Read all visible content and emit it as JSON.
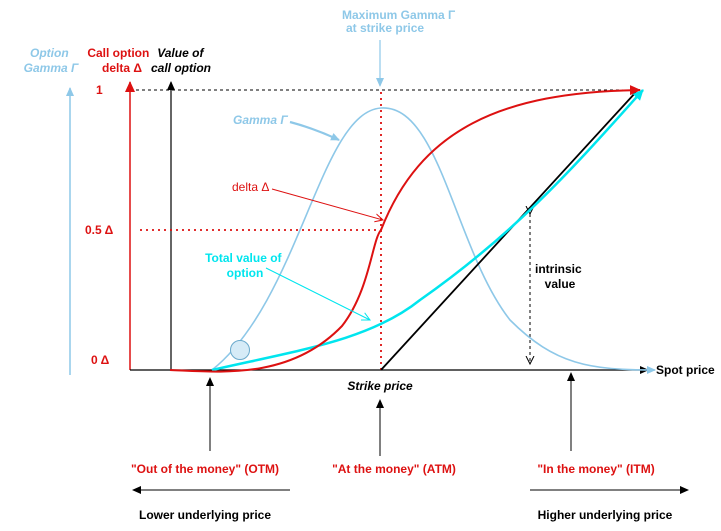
{
  "colors": {
    "gamma": "#8ec8e8",
    "delta": "#dd1111",
    "option_value": "#00e5ee",
    "black": "#000000"
  },
  "axes": {
    "gamma_axis": [
      "Option",
      "Gamma Γ"
    ],
    "delta_axis": [
      "Call option",
      "delta Δ"
    ],
    "value_axis": [
      "Value of",
      "call option"
    ],
    "tick_one": "1",
    "tick_half": "0.5 Δ",
    "tick_zero": "0 Δ",
    "x_axis": "Spot price",
    "strike": "Strike price"
  },
  "annotations": {
    "max_gamma": [
      "Maximum Gamma Γ",
      "at strike price"
    ],
    "gamma": "Gamma Γ",
    "delta": "delta Δ",
    "total_value": [
      "Total value of",
      "option"
    ],
    "intrinsic": [
      "intrinsic",
      "value"
    ]
  },
  "regions": {
    "otm": "\"Out of the money\" (OTM)",
    "atm": "\"At the money\" (ATM)",
    "itm": "\"In the money\" (ITM)"
  },
  "bottom": {
    "lower": "Lower underlying price",
    "higher": "Higher underlying price"
  }
}
